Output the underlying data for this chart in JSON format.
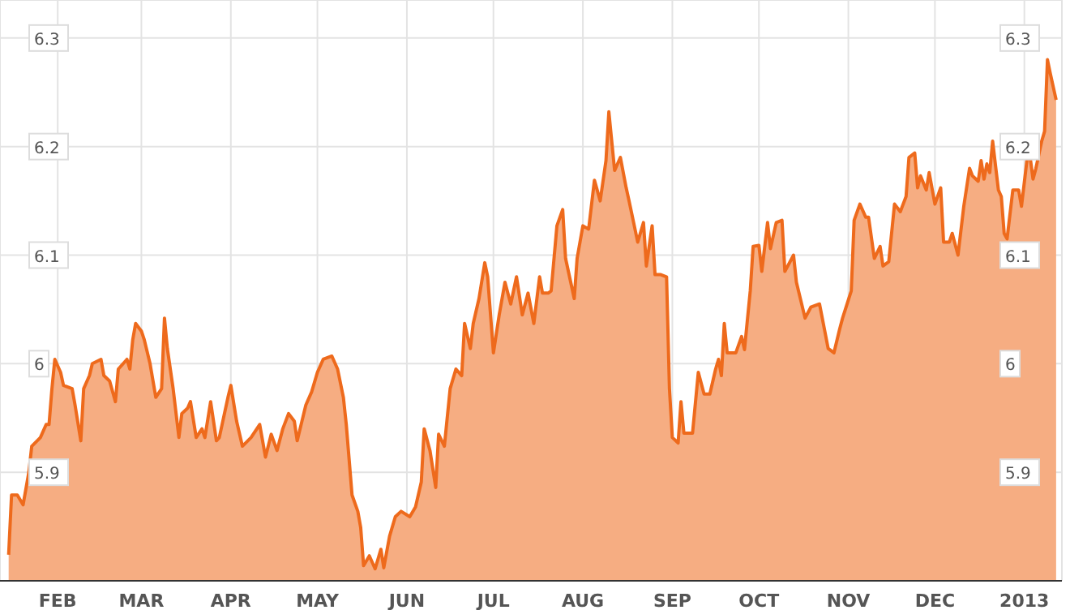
{
  "chart_data": {
    "type": "area",
    "xlim": [
      "2012-01-12",
      "2013-01-14"
    ],
    "ylim": [
      5.8,
      6.335
    ],
    "y2lim": [
      5.8,
      6.335
    ],
    "yticks": [
      5.9,
      6,
      6.1,
      6.2,
      6.3
    ],
    "y2ticks": [
      5.9,
      6,
      6.1,
      6.2,
      6.3
    ],
    "grid": true,
    "legend": false,
    "xticks": [
      {
        "value": "2012-02-01",
        "label": "FEB"
      },
      {
        "value": "2012-03-01",
        "label": "MAR"
      },
      {
        "value": "2012-04-01",
        "label": "APR"
      },
      {
        "value": "2012-05-01",
        "label": "MAY"
      },
      {
        "value": "2012-06-01",
        "label": "JUN"
      },
      {
        "value": "2012-07-01",
        "label": "JUL"
      },
      {
        "value": "2012-08-01",
        "label": "AUG"
      },
      {
        "value": "2012-09-01",
        "label": "SEP"
      },
      {
        "value": "2012-10-01",
        "label": "OCT"
      },
      {
        "value": "2012-11-01",
        "label": "NOV"
      },
      {
        "value": "2012-12-01",
        "label": "DEC"
      },
      {
        "value": "2013-01-01",
        "label": "2013"
      }
    ],
    "x": [
      "2012-01-15",
      "2012-01-16",
      "2012-01-18",
      "2012-01-20",
      "2012-01-22",
      "2012-01-23",
      "2012-01-26",
      "2012-01-28",
      "2012-01-29",
      "2012-01-30",
      "2012-01-31",
      "2012-02-02",
      "2012-02-03",
      "2012-02-06",
      "2012-02-07",
      "2012-02-09",
      "2012-02-10",
      "2012-02-12",
      "2012-02-13",
      "2012-02-16",
      "2012-02-17",
      "2012-02-19",
      "2012-02-21",
      "2012-02-22",
      "2012-02-25",
      "2012-02-26",
      "2012-02-27",
      "2012-02-28",
      "2012-03-01",
      "2012-03-02",
      "2012-03-04",
      "2012-03-06",
      "2012-03-08",
      "2012-03-09",
      "2012-03-10",
      "2012-03-12",
      "2012-03-14",
      "2012-03-15",
      "2012-03-17",
      "2012-03-18",
      "2012-03-20",
      "2012-03-22",
      "2012-03-23",
      "2012-03-25",
      "2012-03-27",
      "2012-03-28",
      "2012-03-31",
      "2012-04-01",
      "2012-04-03",
      "2012-04-05",
      "2012-04-08",
      "2012-04-11",
      "2012-04-13",
      "2012-04-15",
      "2012-04-17",
      "2012-04-19",
      "2012-04-21",
      "2012-04-23",
      "2012-04-24",
      "2012-04-27",
      "2012-04-29",
      "2012-05-01",
      "2012-05-03",
      "2012-05-06",
      "2012-05-08",
      "2012-05-10",
      "2012-05-11",
      "2012-05-13",
      "2012-05-15",
      "2012-05-16",
      "2012-05-17",
      "2012-05-19",
      "2012-05-21",
      "2012-05-23",
      "2012-05-24",
      "2012-05-26",
      "2012-05-28",
      "2012-05-30",
      "2012-06-02",
      "2012-06-04",
      "2012-06-06",
      "2012-06-07",
      "2012-06-09",
      "2012-06-11",
      "2012-06-12",
      "2012-06-14",
      "2012-06-16",
      "2012-06-18",
      "2012-06-20",
      "2012-06-21",
      "2012-06-23",
      "2012-06-24",
      "2012-06-26",
      "2012-06-28",
      "2012-06-29",
      "2012-07-01",
      "2012-07-03",
      "2012-07-05",
      "2012-07-07",
      "2012-07-09",
      "2012-07-11",
      "2012-07-13",
      "2012-07-15",
      "2012-07-17",
      "2012-07-18",
      "2012-07-20",
      "2012-07-21",
      "2012-07-23",
      "2012-07-25",
      "2012-07-26",
      "2012-07-29",
      "2012-07-30",
      "2012-08-01",
      "2012-08-03",
      "2012-08-05",
      "2012-08-07",
      "2012-08-09",
      "2012-08-10",
      "2012-08-12",
      "2012-08-14",
      "2012-08-16",
      "2012-08-17",
      "2012-08-20",
      "2012-08-22",
      "2012-08-23",
      "2012-08-25",
      "2012-08-26",
      "2012-08-28",
      "2012-08-30",
      "2012-08-31",
      "2012-09-01",
      "2012-09-03",
      "2012-09-04",
      "2012-09-05",
      "2012-09-08",
      "2012-09-10",
      "2012-09-12",
      "2012-09-14",
      "2012-09-16",
      "2012-09-17",
      "2012-09-18",
      "2012-09-19",
      "2012-09-20",
      "2012-09-23",
      "2012-09-25",
      "2012-09-26",
      "2012-09-28",
      "2012-09-29",
      "2012-10-01",
      "2012-10-02",
      "2012-10-04",
      "2012-10-05",
      "2012-10-07",
      "2012-10-09",
      "2012-10-10",
      "2012-10-13",
      "2012-10-14",
      "2012-10-17",
      "2012-10-19",
      "2012-10-22",
      "2012-10-25",
      "2012-10-27",
      "2012-10-29",
      "2012-10-30",
      "2012-11-02",
      "2012-11-03",
      "2012-11-05",
      "2012-11-07",
      "2012-11-08",
      "2012-11-10",
      "2012-11-12",
      "2012-11-13",
      "2012-11-15",
      "2012-11-17",
      "2012-11-19",
      "2012-11-21",
      "2012-11-22",
      "2012-11-24",
      "2012-11-25",
      "2012-11-26",
      "2012-11-28",
      "2012-11-29",
      "2012-12-01",
      "2012-12-03",
      "2012-12-04",
      "2012-12-06",
      "2012-12-07",
      "2012-12-09",
      "2012-12-11",
      "2012-12-13",
      "2012-12-14",
      "2012-12-16",
      "2012-12-17",
      "2012-12-18",
      "2012-12-19",
      "2012-12-20",
      "2012-12-21",
      "2012-12-23",
      "2012-12-24",
      "2012-12-25",
      "2012-12-26",
      "2012-12-28",
      "2012-12-30",
      "2012-12-31",
      "2013-01-02",
      "2013-01-03",
      "2013-01-04",
      "2013-01-05",
      "2013-01-07",
      "2013-01-08",
      "2013-01-09",
      "2013-01-10",
      "2013-01-12"
    ],
    "series": [
      {
        "color": "#ee6a1c",
        "values": [
          5.824,
          5.879,
          5.879,
          5.87,
          5.9,
          5.924,
          5.932,
          5.944,
          5.944,
          5.977,
          6.004,
          5.992,
          5.98,
          5.977,
          5.962,
          5.929,
          5.977,
          5.989,
          6.0,
          6.004,
          5.989,
          5.984,
          5.965,
          5.995,
          6.004,
          5.995,
          6.022,
          6.037,
          6.03,
          6.022,
          6.0,
          5.969,
          5.977,
          6.042,
          6.014,
          5.977,
          5.932,
          5.954,
          5.959,
          5.965,
          5.932,
          5.94,
          5.932,
          5.965,
          5.929,
          5.932,
          5.969,
          5.98,
          5.947,
          5.924,
          5.932,
          5.944,
          5.914,
          5.935,
          5.92,
          5.94,
          5.954,
          5.947,
          5.929,
          5.962,
          5.974,
          5.992,
          6.004,
          6.007,
          5.995,
          5.969,
          5.944,
          5.879,
          5.864,
          5.849,
          5.814,
          5.823,
          5.811,
          5.829,
          5.812,
          5.841,
          5.859,
          5.864,
          5.859,
          5.868,
          5.891,
          5.94,
          5.92,
          5.886,
          5.935,
          5.924,
          5.977,
          5.995,
          5.989,
          6.037,
          6.014,
          6.037,
          6.06,
          6.093,
          6.08,
          6.01,
          6.045,
          6.075,
          6.055,
          6.08,
          6.045,
          6.065,
          6.037,
          6.08,
          6.065,
          6.065,
          6.067,
          6.127,
          6.142,
          6.097,
          6.06,
          6.097,
          6.127,
          6.124,
          6.169,
          6.15,
          6.187,
          6.232,
          6.178,
          6.19,
          6.162,
          6.15,
          6.112,
          6.13,
          6.09,
          6.127,
          6.082,
          6.082,
          6.08,
          5.977,
          5.932,
          5.927,
          5.965,
          5.936,
          5.936,
          5.992,
          5.972,
          5.972,
          5.995,
          6.004,
          5.989,
          6.037,
          6.01,
          6.01,
          6.025,
          6.013,
          6.067,
          6.108,
          6.109,
          6.085,
          6.13,
          6.106,
          6.13,
          6.132,
          6.085,
          6.1,
          6.075,
          6.042,
          6.052,
          6.055,
          6.014,
          6.01,
          6.032,
          6.042,
          6.067,
          6.132,
          6.147,
          6.135,
          6.135,
          6.097,
          6.108,
          6.09,
          6.094,
          6.147,
          6.14,
          6.154,
          6.19,
          6.194,
          6.162,
          6.173,
          6.16,
          6.176,
          6.147,
          6.162,
          6.112,
          6.112,
          6.12,
          6.1,
          6.145,
          6.18,
          6.173,
          6.168,
          6.187,
          6.17,
          6.184,
          6.176,
          6.205,
          6.16,
          6.154,
          6.12,
          6.115,
          6.16,
          6.16,
          6.145,
          6.19,
          6.19,
          6.17,
          6.18,
          6.205,
          6.214,
          6.28,
          6.267,
          6.243
        ]
      }
    ]
  }
}
